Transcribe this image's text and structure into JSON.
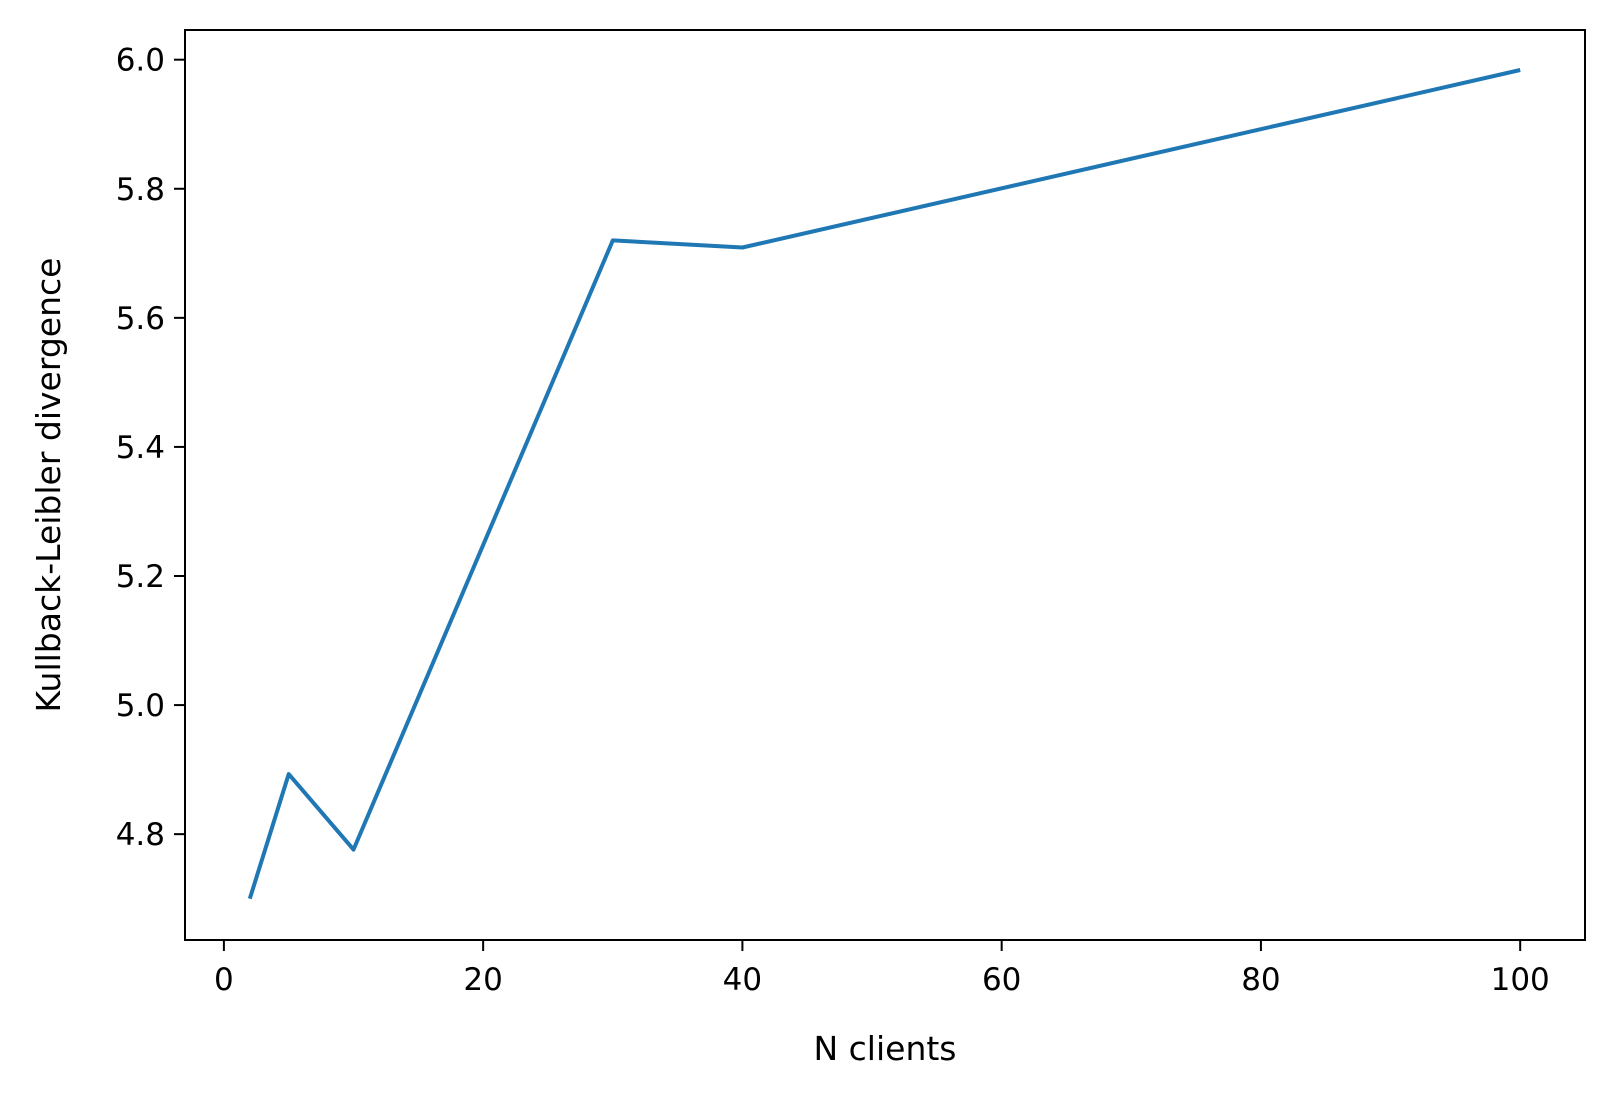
{
  "chart_data": {
    "type": "line",
    "title": "",
    "xlabel": "N clients",
    "ylabel": "Kullback-Leibler divergence",
    "xlim": [
      -3,
      105
    ],
    "ylim": [
      4.636,
      6.046
    ],
    "xticks": [
      0,
      20,
      40,
      60,
      80,
      100
    ],
    "xtick_labels": [
      "0",
      "20",
      "40",
      "60",
      "80",
      "100"
    ],
    "yticks": [
      4.8,
      5.0,
      5.2,
      5.4,
      5.6,
      5.8,
      6.0
    ],
    "ytick_labels": [
      "4.8",
      "5.0",
      "5.2",
      "5.4",
      "5.6",
      "5.8",
      "6.0"
    ],
    "grid": false,
    "legend": "none",
    "series": [
      {
        "color": "#1f77b4",
        "x": [
          2,
          5,
          10,
          30,
          40,
          100
        ],
        "y": [
          4.7,
          4.893,
          4.776,
          5.72,
          5.709,
          5.984
        ]
      }
    ]
  }
}
